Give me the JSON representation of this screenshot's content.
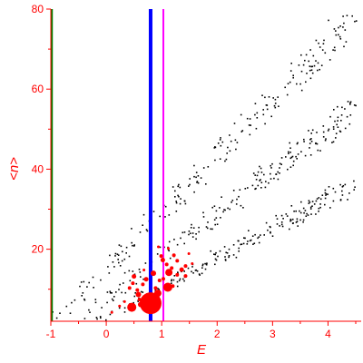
{
  "chart_data": {
    "type": "scatter",
    "xlabel": "E",
    "ylabel": "<n>",
    "xlim": [
      -1,
      4.5
    ],
    "ylim": [
      2,
      80
    ],
    "x_ticks": [
      {
        "value": -1,
        "label": "-1"
      },
      {
        "value": 0,
        "label": "0"
      },
      {
        "value": 1,
        "label": "1"
      },
      {
        "value": 2,
        "label": "2"
      },
      {
        "value": 3,
        "label": "3"
      },
      {
        "value": 4,
        "label": "4"
      }
    ],
    "y_ticks": [
      {
        "value": 20,
        "label": "20"
      },
      {
        "value": 40,
        "label": "40"
      },
      {
        "value": 60,
        "label": "60"
      },
      {
        "value": 80,
        "label": "80"
      }
    ],
    "grid": false,
    "axis_color": "#ff0000",
    "vertical_lines": [
      {
        "x": -0.98,
        "color": "#008000",
        "width": 2
      },
      {
        "x": 0.8,
        "color": "#0000ff",
        "width": 4
      },
      {
        "x": 1.03,
        "color": "#ff00ff",
        "width": 2
      }
    ],
    "background_points_color": "#000000",
    "background_points_count": 620,
    "background_bands": [
      {
        "start": [
          -0.95,
          2
        ],
        "end": [
          4.45,
          78
        ],
        "spread": 6
      },
      {
        "start": [
          -0.6,
          2
        ],
        "end": [
          4.45,
          55
        ],
        "spread": 5
      },
      {
        "start": [
          -0.2,
          2
        ],
        "end": [
          4.45,
          36
        ],
        "spread": 4
      }
    ],
    "highlight_series": {
      "color": "#ff0000",
      "points": [
        {
          "x": 0.8,
          "y": 6.5,
          "size": 12
        },
        {
          "x": 0.46,
          "y": 5.5,
          "size": 5
        },
        {
          "x": 0.62,
          "y": 6.2,
          "size": 3
        },
        {
          "x": 0.58,
          "y": 8.7,
          "size": 3
        },
        {
          "x": 0.72,
          "y": 12.5,
          "size": 2.5
        },
        {
          "x": 0.85,
          "y": 14,
          "size": 3
        },
        {
          "x": 0.93,
          "y": 9,
          "size": 4
        },
        {
          "x": 1.11,
          "y": 10.5,
          "size": 5
        },
        {
          "x": 1.13,
          "y": 14.2,
          "size": 4
        },
        {
          "x": 1.02,
          "y": 17.3,
          "size": 2.5
        },
        {
          "x": 0.5,
          "y": 13.2,
          "size": 2.5
        },
        {
          "x": 0.42,
          "y": 10.3,
          "size": 2
        },
        {
          "x": 0.48,
          "y": 11.5,
          "size": 2
        },
        {
          "x": 0.56,
          "y": 9.8,
          "size": 2
        },
        {
          "x": 0.6,
          "y": 7.4,
          "size": 2
        },
        {
          "x": 0.66,
          "y": 11.2,
          "size": 2
        },
        {
          "x": 0.83,
          "y": 8.2,
          "size": 2
        },
        {
          "x": 0.89,
          "y": 10.3,
          "size": 2
        },
        {
          "x": 0.96,
          "y": 12.2,
          "size": 2
        },
        {
          "x": 1.03,
          "y": 12.6,
          "size": 2
        },
        {
          "x": 1.09,
          "y": 16.2,
          "size": 2
        },
        {
          "x": 1.18,
          "y": 15.3,
          "size": 2
        },
        {
          "x": 1.22,
          "y": 18.5,
          "size": 2
        },
        {
          "x": 1.28,
          "y": 17.1,
          "size": 2
        },
        {
          "x": 1.28,
          "y": 13.6,
          "size": 2
        },
        {
          "x": 1.36,
          "y": 14.9,
          "size": 2.5
        },
        {
          "x": 1.43,
          "y": 15.8,
          "size": 2
        },
        {
          "x": 1.43,
          "y": 13.3,
          "size": 2
        },
        {
          "x": 1.2,
          "y": 10.8,
          "size": 2
        },
        {
          "x": 0.99,
          "y": 18.3,
          "size": 2
        },
        {
          "x": 0.89,
          "y": 6.8,
          "size": 2
        },
        {
          "x": 0.73,
          "y": 5.3,
          "size": 2
        },
        {
          "x": 0.1,
          "y": 4.2,
          "size": 1.5
        },
        {
          "x": 0.24,
          "y": 5.8,
          "size": 1.5
        },
        {
          "x": 0.33,
          "y": 6.9,
          "size": 1.5
        },
        {
          "x": 1.49,
          "y": 18.9,
          "size": 1.5
        },
        {
          "x": 1.55,
          "y": 16.4,
          "size": 1.5
        },
        {
          "x": 1.12,
          "y": 20.2,
          "size": 1.5
        },
        {
          "x": 0.94,
          "y": 20.6,
          "size": 1.5
        },
        {
          "x": 0.68,
          "y": 14.8,
          "size": 1.5
        }
      ]
    }
  }
}
